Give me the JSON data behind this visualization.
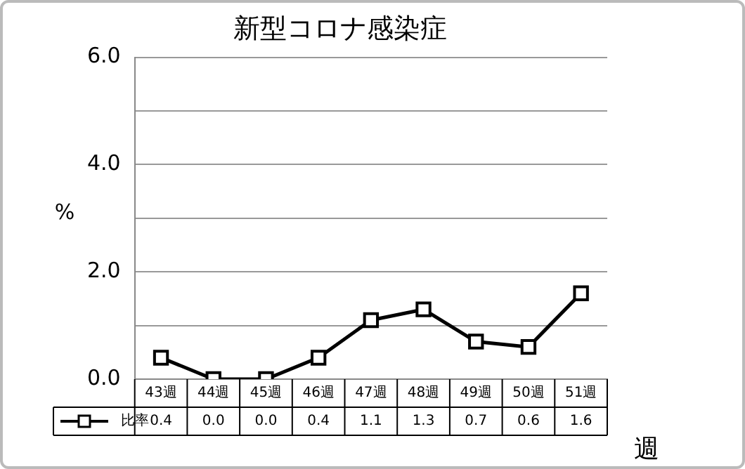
{
  "chart_data": {
    "type": "line",
    "title": "新型コロナ感染症",
    "xlabel": "週",
    "ylabel": "%",
    "categories": [
      "43週",
      "44週",
      "45週",
      "46週",
      "47週",
      "48週",
      "49週",
      "50週",
      "51週"
    ],
    "series": [
      {
        "name": "比率",
        "color": "#000000",
        "values": [
          0.4,
          0.0,
          0.0,
          0.4,
          1.1,
          1.3,
          0.7,
          0.6,
          1.6
        ],
        "value_labels": [
          "0.4",
          "0.0",
          "0.0",
          "0.4",
          "1.1",
          "1.3",
          "0.7",
          "0.6",
          "1.6"
        ]
      }
    ],
    "ylim": [
      0,
      6
    ],
    "yticks": [
      {
        "value": 0,
        "label": "0.0"
      },
      {
        "value": 1,
        "label": null
      },
      {
        "value": 2,
        "label": "2.0"
      },
      {
        "value": 3,
        "label": null
      },
      {
        "value": 4,
        "label": "4.0"
      },
      {
        "value": 5,
        "label": null
      },
      {
        "value": 6,
        "label": "6.0"
      }
    ],
    "grid": "y",
    "legend": "bottom left",
    "marker": "square",
    "line_style": "solid"
  }
}
